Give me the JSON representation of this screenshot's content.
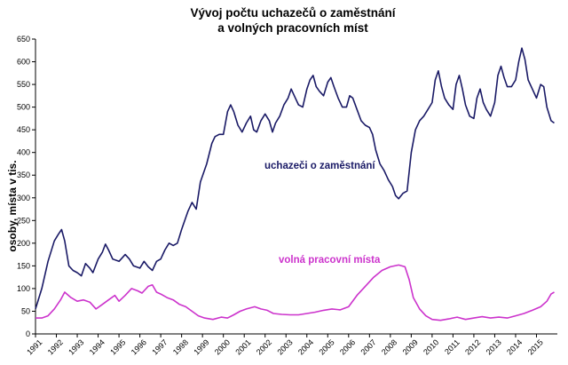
{
  "chart_data": {
    "type": "line",
    "title": [
      "Vývoj počtu uchazečů o zaměstnání",
      "a volných pracovních míst"
    ],
    "ylabel": "osoby, místa v tis.",
    "ylim": [
      0,
      650
    ],
    "yticks": [
      0,
      50,
      100,
      150,
      200,
      250,
      300,
      350,
      400,
      450,
      500,
      550,
      600,
      650
    ],
    "xlim": [
      1991.0,
      2016.0
    ],
    "xticks": [
      "1991",
      "1992",
      "1993",
      "1994",
      "1995",
      "1996",
      "1997",
      "1998",
      "1999",
      "2000",
      "2001",
      "2002",
      "2003",
      "2004",
      "2005",
      "2006",
      "2007",
      "2008",
      "2009",
      "2010",
      "2011",
      "2012",
      "2013",
      "2014",
      "2015"
    ],
    "grid": false,
    "series": [
      {
        "name": "uchazeči o zaměstnání",
        "color": "#1a1a66",
        "points": [
          [
            1991.0,
            55
          ],
          [
            1991.3,
            100
          ],
          [
            1991.6,
            160
          ],
          [
            1991.9,
            205
          ],
          [
            1992.1,
            220
          ],
          [
            1992.25,
            230
          ],
          [
            1992.4,
            205
          ],
          [
            1992.6,
            150
          ],
          [
            1992.8,
            140
          ],
          [
            1993.0,
            135
          ],
          [
            1993.2,
            128
          ],
          [
            1993.4,
            155
          ],
          [
            1993.6,
            145
          ],
          [
            1993.75,
            135
          ],
          [
            1994.0,
            165
          ],
          [
            1994.2,
            180
          ],
          [
            1994.35,
            198
          ],
          [
            1994.5,
            185
          ],
          [
            1994.7,
            165
          ],
          [
            1995.0,
            160
          ],
          [
            1995.3,
            175
          ],
          [
            1995.5,
            165
          ],
          [
            1995.7,
            150
          ],
          [
            1996.0,
            145
          ],
          [
            1996.2,
            160
          ],
          [
            1996.4,
            148
          ],
          [
            1996.6,
            140
          ],
          [
            1996.8,
            160
          ],
          [
            1997.0,
            165
          ],
          [
            1997.2,
            185
          ],
          [
            1997.4,
            200
          ],
          [
            1997.6,
            195
          ],
          [
            1997.8,
            200
          ],
          [
            1998.0,
            230
          ],
          [
            1998.3,
            270
          ],
          [
            1998.5,
            290
          ],
          [
            1998.7,
            275
          ],
          [
            1998.9,
            335
          ],
          [
            1999.2,
            375
          ],
          [
            1999.45,
            420
          ],
          [
            1999.6,
            435
          ],
          [
            1999.8,
            440
          ],
          [
            2000.0,
            440
          ],
          [
            2000.2,
            490
          ],
          [
            2000.35,
            505
          ],
          [
            2000.5,
            490
          ],
          [
            2000.7,
            460
          ],
          [
            2000.9,
            445
          ],
          [
            2001.1,
            465
          ],
          [
            2001.3,
            480
          ],
          [
            2001.45,
            450
          ],
          [
            2001.6,
            445
          ],
          [
            2001.8,
            470
          ],
          [
            2002.0,
            485
          ],
          [
            2002.2,
            470
          ],
          [
            2002.35,
            445
          ],
          [
            2002.5,
            465
          ],
          [
            2002.7,
            480
          ],
          [
            2002.9,
            505
          ],
          [
            2003.1,
            520
          ],
          [
            2003.25,
            540
          ],
          [
            2003.45,
            520
          ],
          [
            2003.6,
            505
          ],
          [
            2003.8,
            500
          ],
          [
            2004.0,
            540
          ],
          [
            2004.15,
            560
          ],
          [
            2004.3,
            570
          ],
          [
            2004.45,
            545
          ],
          [
            2004.6,
            535
          ],
          [
            2004.8,
            525
          ],
          [
            2005.0,
            555
          ],
          [
            2005.15,
            565
          ],
          [
            2005.3,
            545
          ],
          [
            2005.5,
            520
          ],
          [
            2005.7,
            500
          ],
          [
            2005.9,
            500
          ],
          [
            2006.05,
            525
          ],
          [
            2006.2,
            520
          ],
          [
            2006.4,
            495
          ],
          [
            2006.6,
            470
          ],
          [
            2006.8,
            460
          ],
          [
            2007.0,
            455
          ],
          [
            2007.15,
            440
          ],
          [
            2007.3,
            405
          ],
          [
            2007.5,
            375
          ],
          [
            2007.7,
            360
          ],
          [
            2007.9,
            340
          ],
          [
            2008.1,
            325
          ],
          [
            2008.25,
            305
          ],
          [
            2008.4,
            298
          ],
          [
            2008.6,
            310
          ],
          [
            2008.8,
            315
          ],
          [
            2009.0,
            400
          ],
          [
            2009.2,
            450
          ],
          [
            2009.4,
            470
          ],
          [
            2009.6,
            480
          ],
          [
            2009.8,
            495
          ],
          [
            2010.0,
            510
          ],
          [
            2010.15,
            560
          ],
          [
            2010.3,
            580
          ],
          [
            2010.45,
            545
          ],
          [
            2010.6,
            520
          ],
          [
            2010.8,
            505
          ],
          [
            2011.0,
            495
          ],
          [
            2011.15,
            550
          ],
          [
            2011.3,
            570
          ],
          [
            2011.45,
            540
          ],
          [
            2011.6,
            505
          ],
          [
            2011.8,
            480
          ],
          [
            2012.0,
            475
          ],
          [
            2012.15,
            520
          ],
          [
            2012.3,
            540
          ],
          [
            2012.45,
            510
          ],
          [
            2012.6,
            495
          ],
          [
            2012.8,
            480
          ],
          [
            2013.0,
            510
          ],
          [
            2013.15,
            570
          ],
          [
            2013.3,
            590
          ],
          [
            2013.45,
            565
          ],
          [
            2013.6,
            545
          ],
          [
            2013.8,
            545
          ],
          [
            2014.0,
            560
          ],
          [
            2014.15,
            600
          ],
          [
            2014.3,
            630
          ],
          [
            2014.45,
            605
          ],
          [
            2014.6,
            560
          ],
          [
            2014.8,
            540
          ],
          [
            2015.0,
            520
          ],
          [
            2015.2,
            550
          ],
          [
            2015.35,
            545
          ],
          [
            2015.5,
            500
          ],
          [
            2015.7,
            470
          ],
          [
            2015.85,
            465
          ]
        ]
      },
      {
        "name": "volná pracovní místa",
        "color": "#cc33cc",
        "points": [
          [
            1991.0,
            35
          ],
          [
            1991.3,
            35
          ],
          [
            1991.6,
            40
          ],
          [
            1991.9,
            55
          ],
          [
            1992.2,
            75
          ],
          [
            1992.4,
            92
          ],
          [
            1992.7,
            80
          ],
          [
            1993.0,
            72
          ],
          [
            1993.3,
            75
          ],
          [
            1993.6,
            70
          ],
          [
            1993.9,
            55
          ],
          [
            1994.2,
            65
          ],
          [
            1994.5,
            75
          ],
          [
            1994.8,
            85
          ],
          [
            1995.0,
            72
          ],
          [
            1995.3,
            85
          ],
          [
            1995.6,
            100
          ],
          [
            1995.9,
            95
          ],
          [
            1996.1,
            90
          ],
          [
            1996.4,
            105
          ],
          [
            1996.6,
            108
          ],
          [
            1996.8,
            92
          ],
          [
            1997.0,
            88
          ],
          [
            1997.3,
            80
          ],
          [
            1997.6,
            75
          ],
          [
            1997.9,
            65
          ],
          [
            1998.2,
            60
          ],
          [
            1998.5,
            50
          ],
          [
            1998.8,
            40
          ],
          [
            1999.1,
            35
          ],
          [
            1999.5,
            32
          ],
          [
            1999.9,
            37
          ],
          [
            2000.2,
            35
          ],
          [
            2000.5,
            42
          ],
          [
            2000.8,
            50
          ],
          [
            2001.1,
            55
          ],
          [
            2001.5,
            60
          ],
          [
            2001.8,
            55
          ],
          [
            2002.1,
            52
          ],
          [
            2002.4,
            45
          ],
          [
            2002.8,
            43
          ],
          [
            2003.2,
            42
          ],
          [
            2003.6,
            42
          ],
          [
            2004.0,
            45
          ],
          [
            2004.4,
            48
          ],
          [
            2004.8,
            52
          ],
          [
            2005.2,
            55
          ],
          [
            2005.6,
            53
          ],
          [
            2006.0,
            60
          ],
          [
            2006.4,
            85
          ],
          [
            2006.8,
            105
          ],
          [
            2007.2,
            125
          ],
          [
            2007.6,
            140
          ],
          [
            2008.0,
            148
          ],
          [
            2008.4,
            152
          ],
          [
            2008.7,
            148
          ],
          [
            2008.9,
            120
          ],
          [
            2009.1,
            80
          ],
          [
            2009.4,
            55
          ],
          [
            2009.7,
            40
          ],
          [
            2010.0,
            32
          ],
          [
            2010.4,
            30
          ],
          [
            2010.8,
            33
          ],
          [
            2011.2,
            37
          ],
          [
            2011.6,
            32
          ],
          [
            2012.0,
            35
          ],
          [
            2012.4,
            38
          ],
          [
            2012.8,
            35
          ],
          [
            2013.2,
            37
          ],
          [
            2013.6,
            35
          ],
          [
            2014.0,
            40
          ],
          [
            2014.4,
            45
          ],
          [
            2014.8,
            52
          ],
          [
            2015.2,
            60
          ],
          [
            2015.5,
            72
          ],
          [
            2015.7,
            88
          ],
          [
            2015.85,
            92
          ]
        ]
      }
    ],
    "annotations": [
      {
        "text": "uchazeči o zaměstnání",
        "series": 0
      },
      {
        "text": "volná pracovní místa",
        "series": 1
      }
    ]
  }
}
